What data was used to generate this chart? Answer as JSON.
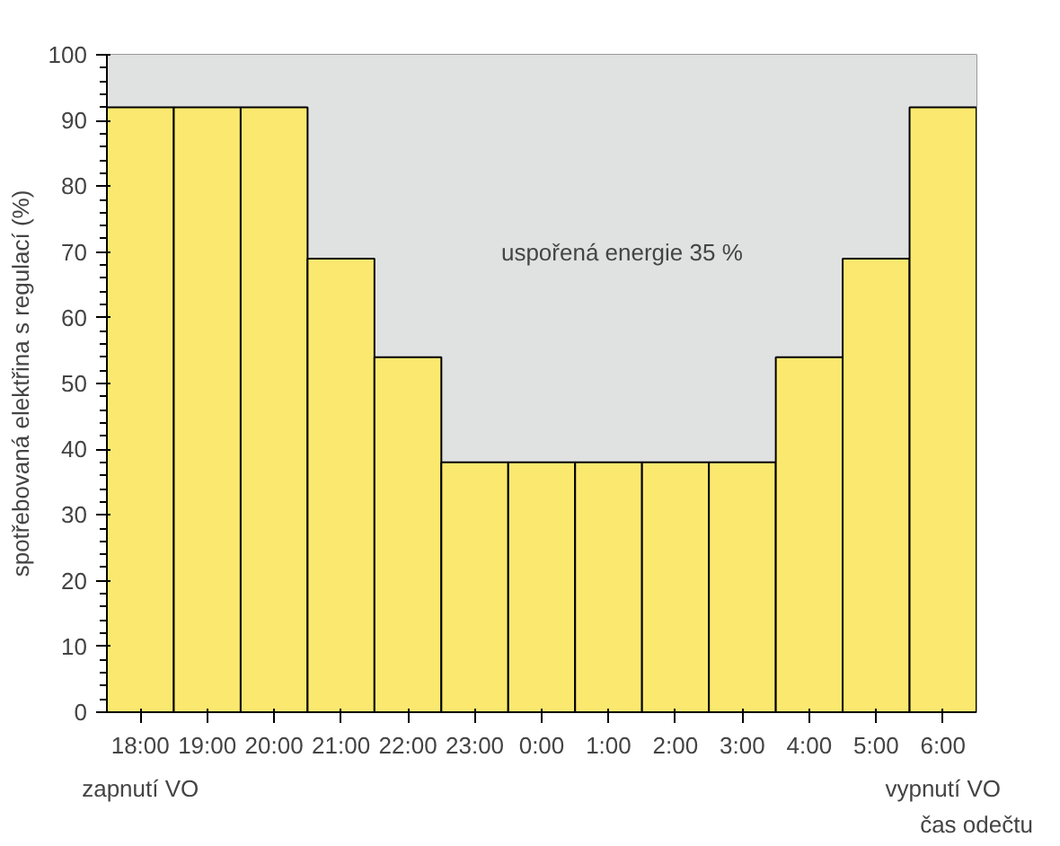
{
  "chart_data": {
    "type": "bar",
    "categories": [
      "18:00",
      "19:00",
      "20:00",
      "21:00",
      "22:00",
      "23:00",
      "0:00",
      "1:00",
      "2:00",
      "3:00",
      "4:00",
      "5:00",
      "6:00"
    ],
    "values": [
      92,
      92,
      92,
      69,
      54,
      38,
      38,
      38,
      38,
      38,
      54,
      69,
      92
    ],
    "color": "#fbe96f",
    "ylim": [
      0,
      100
    ],
    "yticks": [
      0,
      10,
      20,
      30,
      40,
      50,
      60,
      70,
      80,
      90,
      100
    ],
    "ylabel": "spotřebovaná elektřina s regulací (%)",
    "xlabel": "čas odečtu",
    "bands": [
      {
        "axis": "y",
        "from": 38,
        "to": 100,
        "color": "#e0e1e1"
      }
    ],
    "annotations": [
      "uspořená energie 35 %",
      "zapnutí VO",
      "vypnutí VO"
    ],
    "grid": false
  }
}
